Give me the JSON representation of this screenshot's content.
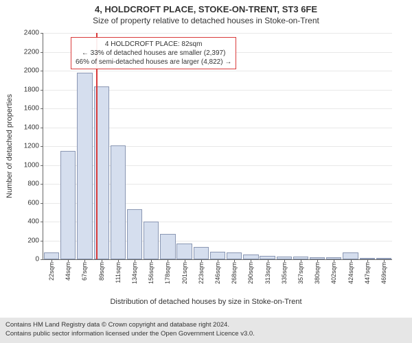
{
  "title_line1": "4, HOLDCROFT PLACE, STOKE-ON-TRENT, ST3 6FE",
  "title_line2": "Size of property relative to detached houses in Stoke-on-Trent",
  "y_axis_label": "Number of detached properties",
  "x_axis_label": "Distribution of detached houses by size in Stoke-on-Trent",
  "chart": {
    "type": "histogram",
    "background_color": "#ffffff",
    "bar_fill": "#d5deee",
    "bar_border": "#8a97b3",
    "ref_line_color": "#d93a3a",
    "ylim": [
      0,
      2400
    ],
    "yticks": [
      0,
      200,
      400,
      600,
      800,
      1000,
      1200,
      1400,
      1600,
      1800,
      2000,
      2200,
      2400
    ],
    "x_start": 22,
    "x_step": 22.37,
    "x_count": 21,
    "bars": [
      70,
      1150,
      1980,
      1830,
      1210,
      530,
      400,
      270,
      170,
      130,
      80,
      70,
      50,
      40,
      30,
      30,
      25,
      20,
      70,
      15,
      10
    ],
    "ref_value": 82,
    "x_labels": [
      "22sqm",
      "44sqm",
      "67sqm",
      "89sqm",
      "111sqm",
      "134sqm",
      "156sqm",
      "178sqm",
      "201sqm",
      "223sqm",
      "246sqm",
      "268sqm",
      "290sqm",
      "313sqm",
      "335sqm",
      "357sqm",
      "380sqm",
      "402sqm",
      "424sqm",
      "447sqm",
      "469sqm"
    ]
  },
  "annotation": {
    "line1": "4 HOLDCROFT PLACE: 82sqm",
    "line2": "← 33% of detached houses are smaller (2,397)",
    "line3": "66% of semi-detached houses are larger (4,822) →"
  },
  "footer": {
    "line1": "Contains HM Land Registry data © Crown copyright and database right 2024.",
    "line2": "Contains public sector information licensed under the Open Government Licence v3.0."
  }
}
